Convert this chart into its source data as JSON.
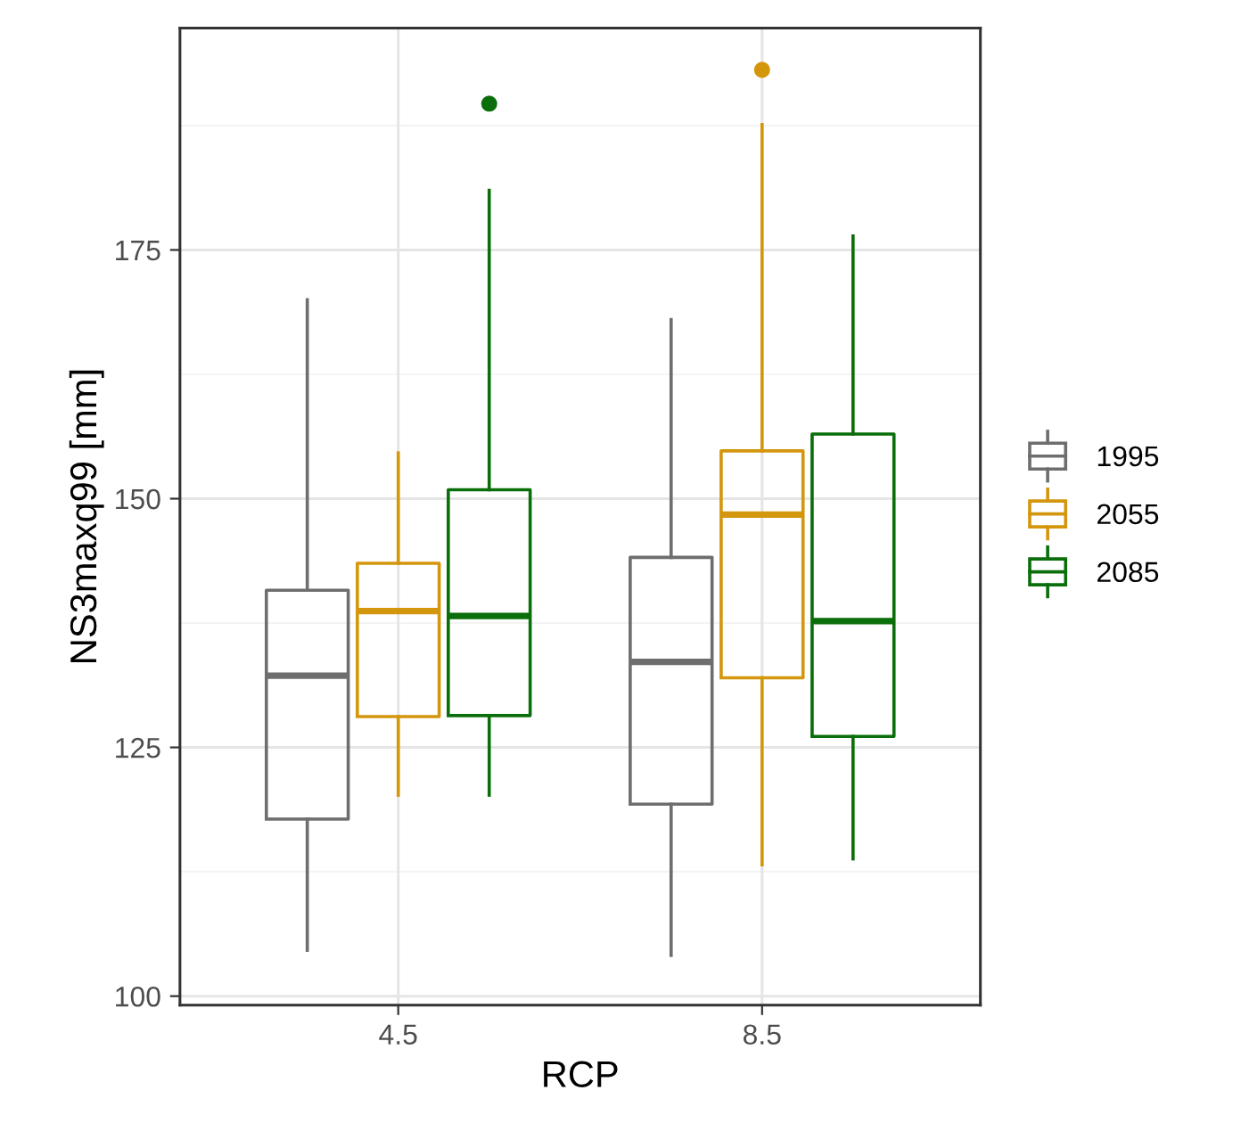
{
  "chart_data": {
    "type": "box",
    "xlabel": "RCP",
    "ylabel": "NS3maxq99 [mm]",
    "categories": [
      "4.5",
      "8.5"
    ],
    "ylim": [
      99.1,
      197.3
    ],
    "yticks": [
      100,
      125,
      150,
      175
    ],
    "grid": true,
    "legend": "right",
    "series": [
      {
        "name": "1995",
        "color": "#6e6e6e",
        "boxes": [
          {
            "low": 104.6,
            "q1": 117.8,
            "median": 132.2,
            "q3": 140.8,
            "high": 170
          },
          {
            "low": 104.1,
            "q1": 119.3,
            "median": 133.6,
            "q3": 144.1,
            "high": 168
          }
        ]
      },
      {
        "name": "2055",
        "color": "#d4960c",
        "boxes": [
          {
            "low": 120.2,
            "q1": 128.1,
            "median": 138.7,
            "q3": 143.5,
            "high": 154.6
          },
          {
            "low": 113.2,
            "q1": 132,
            "median": 148.4,
            "q3": 154.8,
            "high": 187.6,
            "outliers": [
              193.1
            ]
          }
        ]
      },
      {
        "name": "2085",
        "color": "#0a6e0a",
        "boxes": [
          {
            "low": 120.2,
            "q1": 128.2,
            "median": 138.2,
            "q3": 150.9,
            "high": 181,
            "outliers": [
              189.7
            ]
          },
          {
            "low": 113.8,
            "q1": 126.1,
            "median": 137.7,
            "q3": 156.5,
            "high": 176.4
          }
        ]
      }
    ]
  }
}
